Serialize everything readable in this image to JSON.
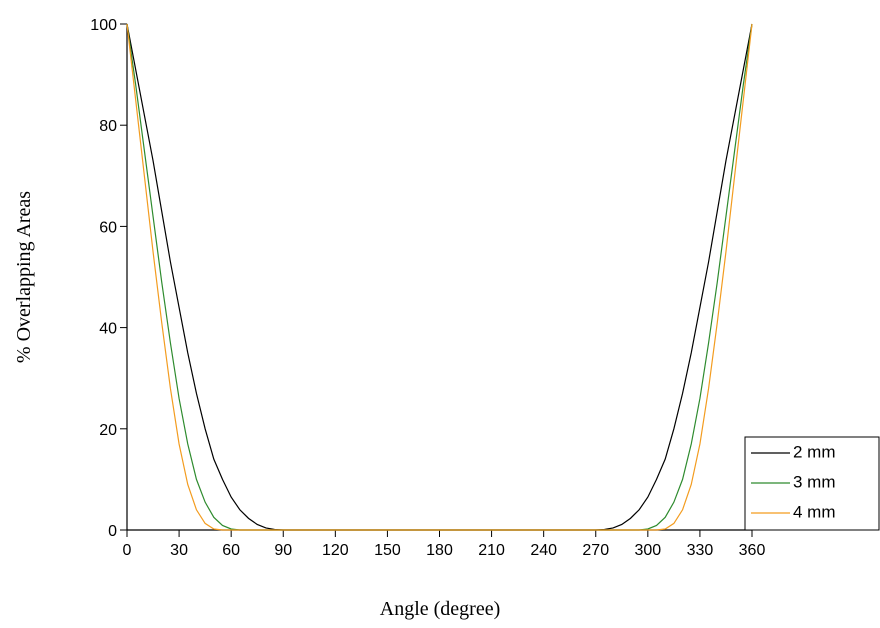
{
  "chart_data": {
    "type": "line",
    "x_label": "Angle (degree)",
    "y_label": "% Overlapping Areas",
    "x": [
      0,
      5,
      10,
      15,
      20,
      25,
      30,
      35,
      40,
      45,
      50,
      55,
      60,
      65,
      70,
      75,
      80,
      85,
      90,
      95,
      100,
      105,
      110,
      115,
      120,
      125,
      130,
      135,
      140,
      145,
      150,
      155,
      160,
      165,
      170,
      175,
      180,
      185,
      190,
      195,
      200,
      205,
      210,
      215,
      220,
      225,
      230,
      235,
      240,
      245,
      250,
      255,
      260,
      265,
      270,
      275,
      280,
      285,
      290,
      295,
      300,
      305,
      310,
      315,
      320,
      325,
      330,
      335,
      340,
      345,
      350,
      355,
      360
    ],
    "series": [
      {
        "name": "2 mm",
        "color": "#000000",
        "values": [
          100,
          91,
          82,
          73,
          63,
          53,
          44,
          35,
          27,
          20,
          14,
          10,
          6.5,
          4,
          2.3,
          1.1,
          0.4,
          0.1,
          0,
          0,
          0,
          0,
          0,
          0,
          0,
          0,
          0,
          0,
          0,
          0,
          0,
          0,
          0,
          0,
          0,
          0,
          0,
          0,
          0,
          0,
          0,
          0,
          0,
          0,
          0,
          0,
          0,
          0,
          0,
          0,
          0,
          0,
          0,
          0,
          0,
          0.1,
          0.4,
          1.1,
          2.3,
          4,
          6.5,
          10,
          14,
          20,
          27,
          35,
          44,
          53,
          63,
          73,
          82,
          91,
          100
        ]
      },
      {
        "name": "3 mm",
        "color": "#2e8b2e",
        "values": [
          100,
          88,
          75,
          62,
          49,
          37,
          26,
          17,
          10,
          5.5,
          2.5,
          0.9,
          0.2,
          0,
          0,
          0,
          0,
          0,
          0,
          0,
          0,
          0,
          0,
          0,
          0,
          0,
          0,
          0,
          0,
          0,
          0,
          0,
          0,
          0,
          0,
          0,
          0,
          0,
          0,
          0,
          0,
          0,
          0,
          0,
          0,
          0,
          0,
          0,
          0,
          0,
          0,
          0,
          0,
          0,
          0,
          0,
          0,
          0,
          0,
          0,
          0.2,
          0.9,
          2.5,
          5.5,
          10,
          17,
          26,
          37,
          49,
          62,
          75,
          88,
          100
        ]
      },
      {
        "name": "4 mm",
        "color": "#f39c1f",
        "values": [
          100,
          85,
          70,
          55,
          41,
          28,
          17,
          9,
          4,
          1.3,
          0.2,
          0,
          0,
          0,
          0,
          0,
          0,
          0,
          0,
          0,
          0,
          0,
          0,
          0,
          0,
          0,
          0,
          0,
          0,
          0,
          0,
          0,
          0,
          0,
          0,
          0,
          0,
          0,
          0,
          0,
          0,
          0,
          0,
          0,
          0,
          0,
          0,
          0,
          0,
          0,
          0,
          0,
          0,
          0,
          0,
          0,
          0,
          0,
          0,
          0,
          0,
          0,
          0.2,
          1.3,
          4,
          9,
          17,
          28,
          41,
          55,
          70,
          85,
          100
        ]
      }
    ],
    "xlim": [
      0,
      360
    ],
    "xticks": [
      0,
      30,
      60,
      90,
      120,
      150,
      180,
      210,
      240,
      270,
      300,
      330,
      360
    ],
    "ylim": [
      0,
      100
    ],
    "yticks": [
      0,
      20,
      40,
      60,
      80,
      100
    ],
    "grid": false,
    "legend": "lower right"
  }
}
